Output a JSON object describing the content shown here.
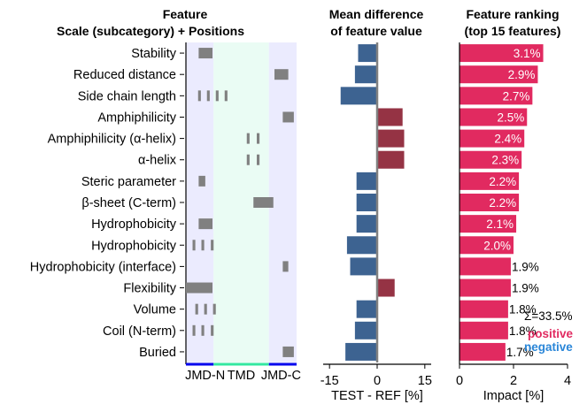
{
  "chart_data": {
    "type": "bar",
    "features": [
      {
        "label": "Stability",
        "segments": [
          [
            0.23,
            0.48
          ]
        ],
        "mean_diff": -6.0,
        "impact": 3.1
      },
      {
        "label": "Reduced distance",
        "segments": [
          [
            1.6,
            1.85
          ]
        ],
        "mean_diff": -7.0,
        "impact": 2.9
      },
      {
        "label": "Side chain length",
        "segments": [
          [
            0.22,
            0.27
          ],
          [
            0.38,
            0.43
          ],
          [
            0.54,
            0.59
          ],
          [
            0.7,
            0.75
          ]
        ],
        "mean_diff": -11.5,
        "impact": 2.7
      },
      {
        "label": "Amphiphilicity",
        "segments": [
          [
            1.75,
            1.95
          ]
        ],
        "mean_diff": 8.0,
        "impact": 2.5
      },
      {
        "label": "Amphiphilicity (α-helix)",
        "segments": [
          [
            1.1,
            1.15
          ],
          [
            1.28,
            1.33
          ]
        ],
        "mean_diff": 8.5,
        "impact": 2.4
      },
      {
        "label": "α-helix",
        "segments": [
          [
            1.1,
            1.15
          ],
          [
            1.28,
            1.33
          ]
        ],
        "mean_diff": 8.5,
        "impact": 2.3
      },
      {
        "label": "Steric parameter",
        "segments": [
          [
            0.23,
            0.35
          ]
        ],
        "mean_diff": -6.5,
        "impact": 2.2
      },
      {
        "label": "β-sheet (C-term)",
        "segments": [
          [
            1.22,
            1.58
          ]
        ],
        "mean_diff": -6.5,
        "impact": 2.2
      },
      {
        "label": "Hydrophobicity",
        "segments": [
          [
            0.23,
            0.48
          ]
        ],
        "mean_diff": -6.5,
        "impact": 2.1
      },
      {
        "label": "Hydrophobicity",
        "segments": [
          [
            0.12,
            0.17
          ],
          [
            0.28,
            0.33
          ],
          [
            0.45,
            0.5
          ]
        ],
        "mean_diff": -9.5,
        "impact": 2.0
      },
      {
        "label": "Hydrophobicity (interface)",
        "segments": [
          [
            1.75,
            1.85
          ]
        ],
        "mean_diff": -8.5,
        "impact": 1.9
      },
      {
        "label": "Flexibility",
        "segments": [
          [
            0.0,
            0.48
          ]
        ],
        "mean_diff": 5.5,
        "impact": 1.9
      },
      {
        "label": "Volume",
        "segments": [
          [
            0.17,
            0.22
          ],
          [
            0.33,
            0.38
          ],
          [
            0.49,
            0.54
          ]
        ],
        "mean_diff": -6.5,
        "impact": 1.8
      },
      {
        "label": "Coil (N-term)",
        "segments": [
          [
            0.12,
            0.17
          ],
          [
            0.28,
            0.33
          ],
          [
            0.45,
            0.5
          ]
        ],
        "mean_diff": -7.0,
        "impact": 1.8
      },
      {
        "label": "Buried",
        "segments": [
          [
            1.75,
            1.95
          ]
        ],
        "mean_diff": -10.0,
        "impact": 1.7
      }
    ],
    "panels": {
      "feature": {
        "title_line1": "Feature",
        "title_line2": "Scale (subcategory)  +  Positions",
        "regions": [
          "JMD-N",
          "TMD",
          "JMD-C"
        ],
        "region_bounds": [
          0,
          0.5,
          1.5,
          2.0
        ]
      },
      "mean_difference": {
        "title_line1": "Mean difference",
        "title_line2": "of feature value",
        "xlabel": "TEST - REF [%]",
        "xlim": [
          -17,
          17
        ],
        "xticks": [
          -15,
          0,
          15
        ]
      },
      "ranking": {
        "title_line1": "Feature ranking",
        "title_line2": "(top 15 features)",
        "xlabel": "Impact [%]",
        "xlim": [
          0,
          4
        ],
        "xticks": [
          0,
          2,
          4
        ],
        "label_suffix": "%"
      }
    },
    "legend": {
      "total": "Σ=33.5%",
      "positive": "positive",
      "negative": "negative"
    },
    "colors": {
      "positive_bar": "#953344",
      "negative_bar": "#3d6391",
      "impact_bar": "#e12a60",
      "position_mark": "#808080",
      "jmd_bg": "#ebebfe",
      "tmd_bg": "#eafcf4",
      "jmd_line": "#0000ee",
      "tmd_line": "#33e8a0",
      "legend_pos": "#e12a60",
      "legend_neg": "#2a86d8"
    }
  }
}
